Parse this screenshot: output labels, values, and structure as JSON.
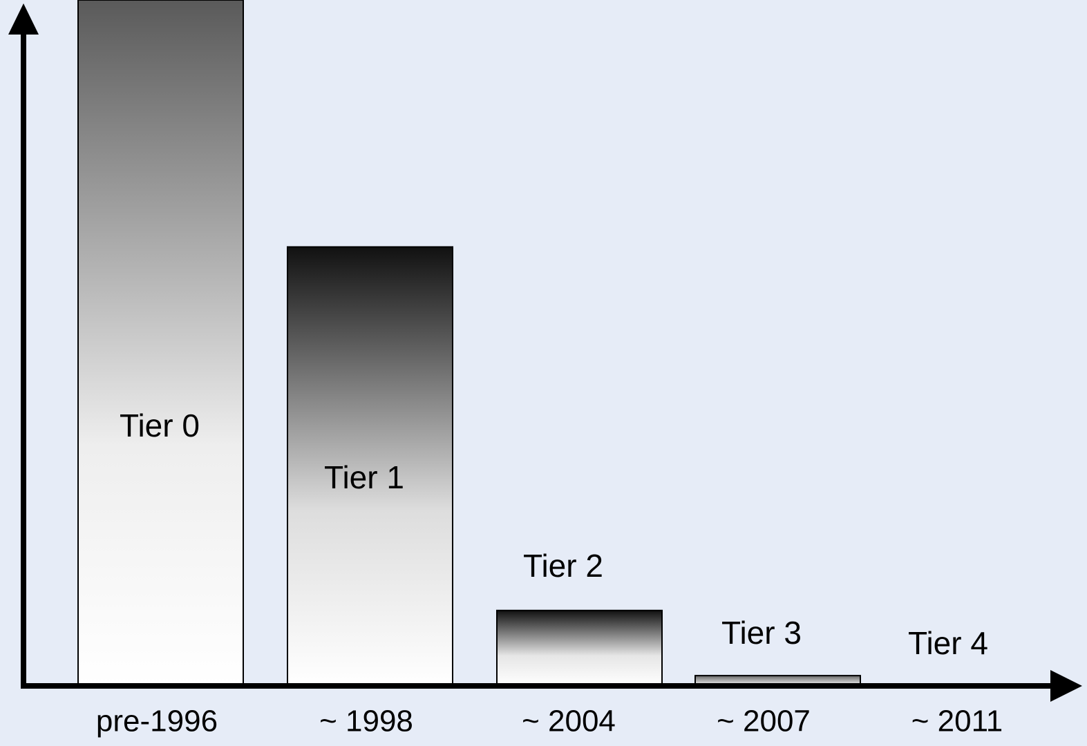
{
  "chart_data": {
    "type": "bar",
    "categories": [
      "pre-1996",
      "~ 1998",
      "~ 2004",
      "~ 2007",
      "~ 2011"
    ],
    "bar_labels": [
      "Tier 0",
      "Tier 1",
      "Tier 2",
      "Tier 3",
      "Tier 4"
    ],
    "values": [
      100,
      64,
      11,
      1.5,
      0.3
    ],
    "ylim": [
      0,
      100
    ]
  }
}
